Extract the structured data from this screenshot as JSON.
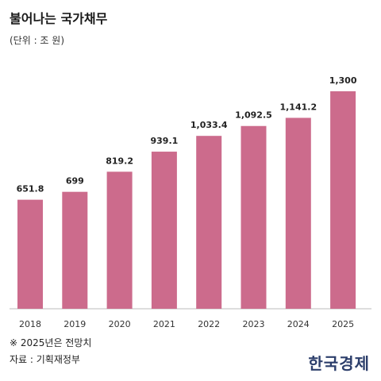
{
  "title": "불어나는 국가채무",
  "unit": "(단위 : 조 원)",
  "note": "※ 2025년은 전망치",
  "source": "자료 : 기획재정부",
  "logo": "한국경제",
  "colors": {
    "bar": "#cc6b8c",
    "axis": "#bbbbbb",
    "logo": "#2c3e6b"
  },
  "chart_data": {
    "type": "bar",
    "categories": [
      "2018",
      "2019",
      "2020",
      "2021",
      "2022",
      "2023",
      "2024",
      "2025"
    ],
    "values": [
      651.8,
      699,
      819.2,
      939.1,
      1033.4,
      1092.5,
      1141.2,
      1300
    ],
    "value_labels": [
      "651.8",
      "699",
      "819.2",
      "939.1",
      "1,033.4",
      "1,092.5",
      "1,141.2",
      "1,300"
    ],
    "title": "불어나는 국가채무",
    "ylim": [
      0,
      1300
    ],
    "grid": false,
    "legend": "none"
  }
}
